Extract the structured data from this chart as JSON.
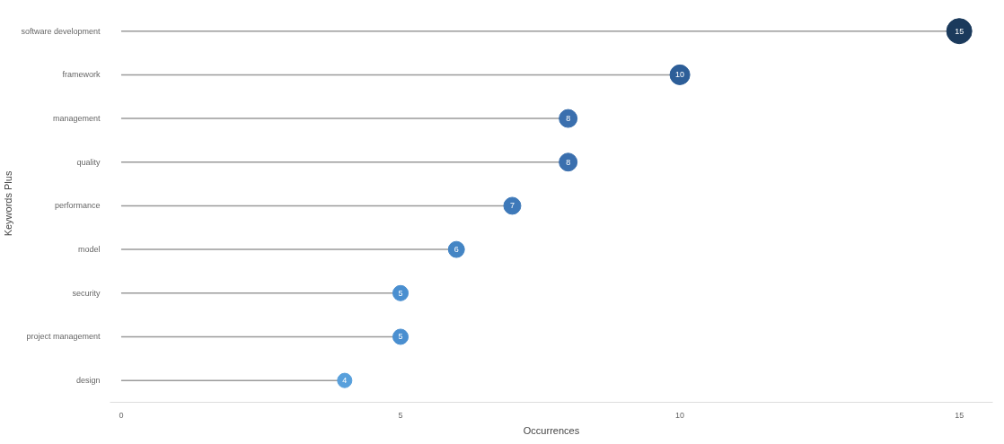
{
  "chart_data": {
    "type": "lollipop",
    "orientation": "horizontal",
    "xlabel": "Occurrences",
    "ylabel": "Keywords Plus",
    "categories": [
      "software development",
      "framework",
      "management",
      "quality",
      "performance",
      "model",
      "security",
      "project management",
      "design"
    ],
    "values": [
      15,
      10,
      8,
      8,
      7,
      6,
      5,
      5,
      4
    ],
    "colors": [
      "#1b3a5c",
      "#2d5e98",
      "#3a6fae",
      "#3a6fae",
      "#3e79b9",
      "#4485c4",
      "#4a8fd0",
      "#4a8fd0",
      "#58a0dc"
    ],
    "sizes": [
      1,
      0.62,
      0.51,
      0.51,
      0.46,
      0.41,
      0.37,
      0.37,
      0.33
    ],
    "data_labels": true,
    "xlim": [
      -0.2,
      15.6
    ],
    "xticks": [
      0,
      5,
      10,
      15
    ],
    "grid": false
  }
}
